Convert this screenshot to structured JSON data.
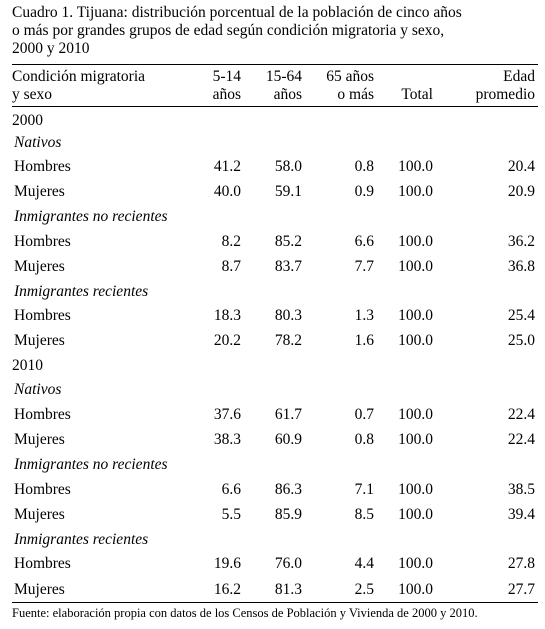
{
  "caption": {
    "line1": "Cuadro 1. Tijuana: distribución porcentual de la población de cinco años",
    "line2": "o más por grandes grupos de edad según condición migratoria y sexo,",
    "line3": "2000 y 2010"
  },
  "header": {
    "label_line1": "Condición migratoria",
    "label_line2": "y sexo",
    "col1_line1": "5-14",
    "col1_line2": "años",
    "col2_line1": "15-64",
    "col2_line2": "años",
    "col3_line1": "65 años",
    "col3_line2": "o más",
    "col4": "Total",
    "col5_line1": "Edad",
    "col5_line2": "promedio"
  },
  "rows": [
    {
      "label": "2000"
    },
    {
      "label": "Nativos"
    },
    {
      "label": "Hombres",
      "c1": "41.2",
      "c2": "58.0",
      "c3": "0.8",
      "c4": "100.0",
      "c5": "20.4"
    },
    {
      "label": "Mujeres",
      "c1": "40.0",
      "c2": "59.1",
      "c3": "0.9",
      "c4": "100.0",
      "c5": "20.9"
    },
    {
      "label": "Inmigrantes no recientes"
    },
    {
      "label": "Hombres",
      "c1": "8.2",
      "c2": "85.2",
      "c3": "6.6",
      "c4": "100.0",
      "c5": "36.2"
    },
    {
      "label": "Mujeres",
      "c1": "8.7",
      "c2": "83.7",
      "c3": "7.7",
      "c4": "100.0",
      "c5": "36.8"
    },
    {
      "label": "Inmigrantes recientes"
    },
    {
      "label": "Hombres",
      "c1": "18.3",
      "c2": "80.3",
      "c3": "1.3",
      "c4": "100.0",
      "c5": "25.4"
    },
    {
      "label": "Mujeres",
      "c1": "20.2",
      "c2": "78.2",
      "c3": "1.6",
      "c4": "100.0",
      "c5": "25.0"
    },
    {
      "label": "2010"
    },
    {
      "label": "Nativos"
    },
    {
      "label": "Hombres",
      "c1": "37.6",
      "c2": "61.7",
      "c3": "0.7",
      "c4": "100.0",
      "c5": "22.4"
    },
    {
      "label": "Mujeres",
      "c1": "38.3",
      "c2": "60.9",
      "c3": "0.8",
      "c4": "100.0",
      "c5": "22.4"
    },
    {
      "label": "Inmigrantes no recientes"
    },
    {
      "label": "Hombres",
      "c1": "6.6",
      "c2": "86.3",
      "c3": "7.1",
      "c4": "100.0",
      "c5": "38.5"
    },
    {
      "label": "Mujeres",
      "c1": "5.5",
      "c2": "85.9",
      "c3": "8.5",
      "c4": "100.0",
      "c5": "39.4"
    },
    {
      "label": "Inmigrantes recientes"
    },
    {
      "label": "Hombres",
      "c1": "19.6",
      "c2": "76.0",
      "c3": "4.4",
      "c4": "100.0",
      "c5": "27.8"
    },
    {
      "label": "Mujeres",
      "c1": "16.2",
      "c2": "81.3",
      "c3": "2.5",
      "c4": "100.0",
      "c5": "27.7"
    }
  ],
  "source": "Fuente: elaboración propia con datos de los Censos de Población y Vivienda de 2000 y 2010."
}
